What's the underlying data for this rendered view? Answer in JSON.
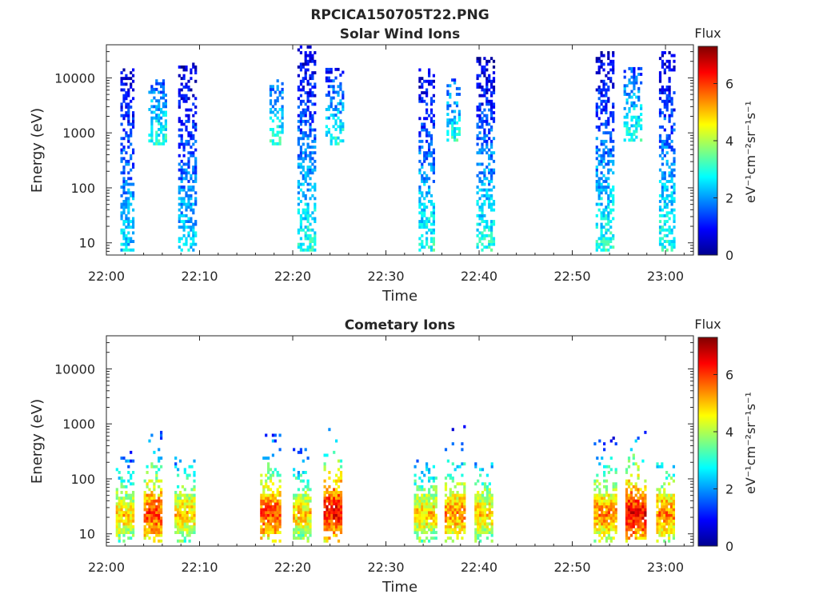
{
  "figure": {
    "title": "RPCICA150705T22.PNG"
  },
  "colorbar": {
    "label": "Flux",
    "unit_text": "eV⁻¹cm⁻²sr⁻¹s⁻¹",
    "range": [
      0,
      7.3
    ],
    "ticks": [
      "0",
      "2",
      "4",
      "6"
    ],
    "colormap": "jet"
  },
  "chart_data": [
    {
      "type": "heatmap",
      "title": "Solar Wind Ions",
      "xlabel": "Time",
      "ylabel": "Energy (eV)",
      "xlim": [
        "22:00",
        "23:03"
      ],
      "ylim": [
        6,
        40000
      ],
      "yscale": "log",
      "xticks": [
        "22:00",
        "22:10",
        "22:20",
        "22:30",
        "22:40",
        "22:50",
        "23:00"
      ],
      "yticks": [
        "10",
        "100",
        "1000",
        "10000"
      ],
      "grid": false,
      "bursts": [
        {
          "start": "22:01.5",
          "end": "22:03.0",
          "emin": 7,
          "emax": 14000,
          "flux_low": 2.5,
          "flux_high": 0.5
        },
        {
          "start": "22:04.5",
          "end": "22:06.5",
          "emin": 600,
          "emax": 9000,
          "flux_low": 3.0,
          "flux_high": 1.5
        },
        {
          "start": "22:07.7",
          "end": "22:09.5",
          "emin": 7,
          "emax": 18000,
          "flux_low": 2.5,
          "flux_high": 0.5
        },
        {
          "start": "22:17.5",
          "end": "22:19.0",
          "emin": 600,
          "emax": 9000,
          "flux_low": 3.0,
          "flux_high": 1.5
        },
        {
          "start": "22:20.5",
          "end": "22:22.3",
          "emin": 7,
          "emax": 35000,
          "flux_low": 3.0,
          "flux_high": 0.5
        },
        {
          "start": "22:23.5",
          "end": "22:25.5",
          "emin": 600,
          "emax": 14000,
          "flux_low": 3.0,
          "flux_high": 1.0
        },
        {
          "start": "22:33.5",
          "end": "22:35.2",
          "emin": 7,
          "emax": 14000,
          "flux_low": 3.0,
          "flux_high": 0.5
        },
        {
          "start": "22:36.5",
          "end": "22:38.0",
          "emin": 700,
          "emax": 9000,
          "flux_low": 3.0,
          "flux_high": 1.5
        },
        {
          "start": "22:39.7",
          "end": "22:41.5",
          "emin": 7,
          "emax": 24000,
          "flux_low": 3.0,
          "flux_high": 0.5
        },
        {
          "start": "22:52.5",
          "end": "22:54.5",
          "emin": 7,
          "emax": 30000,
          "flux_low": 3.0,
          "flux_high": 0.5
        },
        {
          "start": "22:55.5",
          "end": "22:57.5",
          "emin": 700,
          "emax": 14000,
          "flux_low": 3.0,
          "flux_high": 1.5
        },
        {
          "start": "22:59.3",
          "end": "23:01.0",
          "emin": 7,
          "emax": 30000,
          "flux_low": 3.0,
          "flux_high": 0.5
        }
      ]
    },
    {
      "type": "heatmap",
      "title": "Cometary Ions",
      "xlabel": "Time",
      "ylabel": "Energy (eV)",
      "xlim": [
        "22:00",
        "23:03"
      ],
      "ylim": [
        6,
        40000
      ],
      "yscale": "log",
      "xticks": [
        "22:00",
        "22:10",
        "22:20",
        "22:30",
        "22:40",
        "22:50",
        "23:00"
      ],
      "yticks": [
        "10",
        "100",
        "1000",
        "10000"
      ],
      "grid": false,
      "bursts": [
        {
          "start": "22:01.0",
          "end": "22:03.0",
          "emin": 7,
          "emax": 300,
          "flux_peak": 5.0,
          "peak_energy": 20
        },
        {
          "start": "22:04.0",
          "end": "22:06.0",
          "emin": 7,
          "emax": 700,
          "flux_peak": 6.0,
          "peak_energy": 22
        },
        {
          "start": "22:07.3",
          "end": "22:09.5",
          "emin": 7,
          "emax": 250,
          "flux_peak": 5.0,
          "peak_energy": 22
        },
        {
          "start": "22:16.5",
          "end": "22:18.7",
          "emin": 7,
          "emax": 700,
          "flux_peak": 6.0,
          "peak_energy": 22
        },
        {
          "start": "22:20.0",
          "end": "22:22.0",
          "emin": 7,
          "emax": 400,
          "flux_peak": 5.0,
          "peak_energy": 22
        },
        {
          "start": "22:23.3",
          "end": "22:25.3",
          "emin": 7,
          "emax": 800,
          "flux_peak": 6.5,
          "peak_energy": 25
        },
        {
          "start": "22:33.0",
          "end": "22:35.3",
          "emin": 7,
          "emax": 300,
          "flux_peak": 5.0,
          "peak_energy": 22
        },
        {
          "start": "22:36.3",
          "end": "22:38.5",
          "emin": 7,
          "emax": 850,
          "flux_peak": 5.5,
          "peak_energy": 22
        },
        {
          "start": "22:39.5",
          "end": "22:41.5",
          "emin": 7,
          "emax": 200,
          "flux_peak": 5.0,
          "peak_energy": 22
        },
        {
          "start": "22:52.3",
          "end": "22:54.7",
          "emin": 7,
          "emax": 600,
          "flux_peak": 5.5,
          "peak_energy": 22
        },
        {
          "start": "22:55.7",
          "end": "22:57.8",
          "emin": 7,
          "emax": 700,
          "flux_peak": 6.5,
          "peak_energy": 22
        },
        {
          "start": "22:59.0",
          "end": "23:01.0",
          "emin": 7,
          "emax": 200,
          "flux_peak": 5.5,
          "peak_energy": 22
        }
      ]
    }
  ]
}
